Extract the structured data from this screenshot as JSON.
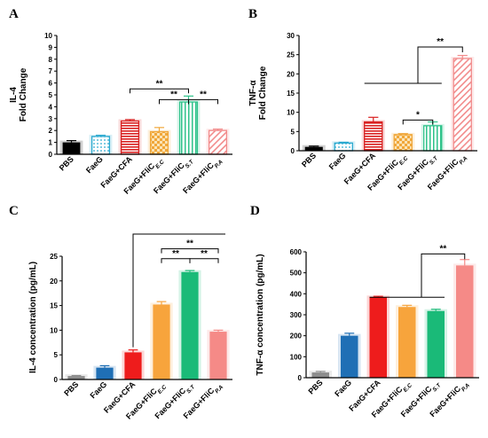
{
  "chart_data": [
    {
      "panel": "A",
      "type": "bar",
      "ylabel_lines": [
        "IL-4",
        "Fold Change"
      ],
      "categories": [
        {
          "base": "PBS",
          "sub": ""
        },
        {
          "base": "FaeG",
          "sub": ""
        },
        {
          "base": "FaeG+CFA",
          "sub": ""
        },
        {
          "base": "FaeG+FliC",
          "sub": "E.C"
        },
        {
          "base": "FaeG+FliC",
          "sub": "S.T"
        },
        {
          "base": "FaeG+FliC",
          "sub": "P.A"
        }
      ],
      "values": [
        1.0,
        1.5,
        2.8,
        1.9,
        4.4,
        2.0
      ],
      "errors": [
        0.15,
        0.1,
        0.12,
        0.35,
        0.5,
        0.12
      ],
      "ylim": [
        0,
        10
      ],
      "yticks": [
        0,
        1,
        2,
        3,
        4,
        5,
        6,
        7,
        8,
        9,
        10
      ],
      "colors": [
        "#000000",
        "#29a9cf",
        "#d92020",
        "#f0a73a",
        "#2ec28a",
        "#f28b8b"
      ],
      "patterns": [
        "solid",
        "dots",
        "hlines",
        "checker",
        "vlines",
        "diag"
      ],
      "significance": [
        {
          "label": "**",
          "from": 2,
          "to": 4,
          "y": 5.5
        },
        {
          "label": "**",
          "from": 3,
          "to": 4,
          "y": 4.6
        },
        {
          "label": "**",
          "from": 4,
          "to": 5,
          "y": 4.6
        }
      ]
    },
    {
      "panel": "B",
      "type": "bar",
      "ylabel_lines": [
        "TNF-α",
        "Fold Change"
      ],
      "categories": [
        {
          "base": "PBS",
          "sub": ""
        },
        {
          "base": "FaeG",
          "sub": ""
        },
        {
          "base": "FaeG+CFA",
          "sub": ""
        },
        {
          "base": "FaeG+FliC",
          "sub": "E.C"
        },
        {
          "base": "FaeG+FliC",
          "sub": "S.T"
        },
        {
          "base": "FaeG+FliC",
          "sub": "P.A"
        }
      ],
      "values": [
        1.0,
        2.0,
        7.5,
        4.2,
        6.5,
        24.0
      ],
      "errors": [
        0.2,
        0.2,
        1.2,
        0.25,
        1.0,
        0.8
      ],
      "ylim": [
        0,
        30
      ],
      "yticks": [
        0,
        5,
        10,
        15,
        20,
        25,
        30
      ],
      "colors": [
        "#000000",
        "#29a9cf",
        "#d92020",
        "#f0a73a",
        "#2ec28a",
        "#f28b8b"
      ],
      "patterns": [
        "solid",
        "dots",
        "hlines",
        "checker",
        "vlines",
        "diag"
      ],
      "significance": [
        {
          "label": "**",
          "group_from": 2,
          "group_to": 4,
          "stem": 3.5,
          "to": 5,
          "y": 27
        },
        {
          "label": "*",
          "from": 3,
          "to": 4,
          "y": 8
        }
      ]
    },
    {
      "panel": "C",
      "type": "bar",
      "ylabel_lines": [
        "IL-4 concentration (pg/mL)"
      ],
      "categories": [
        {
          "base": "PBS",
          "sub": ""
        },
        {
          "base": "FaeG",
          "sub": ""
        },
        {
          "base": "FaeG+CFA",
          "sub": ""
        },
        {
          "base": "FaeG+FliC",
          "sub": "E.C"
        },
        {
          "base": "FaeG+FliC",
          "sub": "S.T"
        },
        {
          "base": "FaeG+FliC",
          "sub": "P.A"
        }
      ],
      "values": [
        0.7,
        2.4,
        5.5,
        15.2,
        21.8,
        9.7
      ],
      "errors": [
        0.1,
        0.4,
        0.5,
        0.6,
        0.3,
        0.3
      ],
      "ylim": [
        0,
        25
      ],
      "yticks": [
        0,
        5,
        10,
        15,
        20,
        25
      ],
      "colors": [
        "#8c8c8c",
        "#1f6fb5",
        "#ee1c1c",
        "#f7a43c",
        "#1aba78",
        "#f58a87"
      ],
      "patterns": [
        "solid",
        "solid",
        "solid",
        "solid",
        "solid",
        "solid"
      ],
      "significance": [
        {
          "label": "**",
          "from": 3,
          "to": 5,
          "y": 26.5
        },
        {
          "label": "**",
          "from": 3,
          "to": 4,
          "y": 24.5
        },
        {
          "label": "**",
          "from": 4,
          "to": 5,
          "y": 24.5
        }
      ],
      "connector": {
        "from": 2,
        "to_x_between": [
          3,
          5
        ],
        "y": 29.5
      }
    },
    {
      "panel": "D",
      "type": "bar",
      "ylabel_lines": [
        "TNF-α concentration (pg/mL)"
      ],
      "categories": [
        {
          "base": "PBS",
          "sub": ""
        },
        {
          "base": "FaeG",
          "sub": ""
        },
        {
          "base": "FaeG+CFA",
          "sub": ""
        },
        {
          "base": "FaeG+FliC",
          "sub": "E.C"
        },
        {
          "base": "FaeG+FliC",
          "sub": "S.T"
        },
        {
          "base": "FaeG+FliC",
          "sub": "P.A"
        }
      ],
      "values": [
        25,
        200,
        383,
        337,
        318,
        535
      ],
      "errors": [
        5,
        12,
        5,
        8,
        8,
        28
      ],
      "ylim": [
        0,
        600
      ],
      "yticks": [
        0,
        100,
        200,
        300,
        400,
        500,
        600
      ],
      "colors": [
        "#8c8c8c",
        "#1f6fb5",
        "#ee1c1c",
        "#f7a43c",
        "#1aba78",
        "#f58a87"
      ],
      "patterns": [
        "solid",
        "solid",
        "solid",
        "solid",
        "solid",
        "solid"
      ],
      "significance": [
        {
          "label": "**",
          "group_from": 2,
          "group_to": 4,
          "stem": 3.5,
          "to": 5,
          "y": 590
        }
      ]
    }
  ]
}
